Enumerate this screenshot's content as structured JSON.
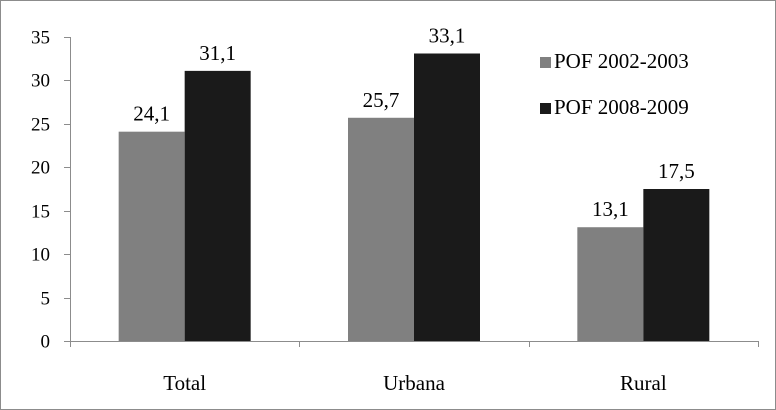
{
  "chart_data": {
    "type": "bar",
    "categories": [
      "Total",
      "Urbana",
      "Rural"
    ],
    "series": [
      {
        "name": "POF 2002-2003",
        "values": [
          24.1,
          25.7,
          13.1
        ],
        "labels": [
          "24,1",
          "25,7",
          "13,1"
        ],
        "color": "#808080"
      },
      {
        "name": "POF 2008-2009",
        "values": [
          31.1,
          33.1,
          17.5
        ],
        "labels": [
          "31,1",
          "33,1",
          "17,5"
        ],
        "color": "#1a1a1a"
      }
    ],
    "y_ticks": [
      0,
      5,
      10,
      15,
      20,
      25,
      30,
      35
    ],
    "ylim": [
      0,
      35
    ],
    "grid": false,
    "legend_position": "top-right",
    "title": "",
    "xlabel": "",
    "ylabel": ""
  }
}
